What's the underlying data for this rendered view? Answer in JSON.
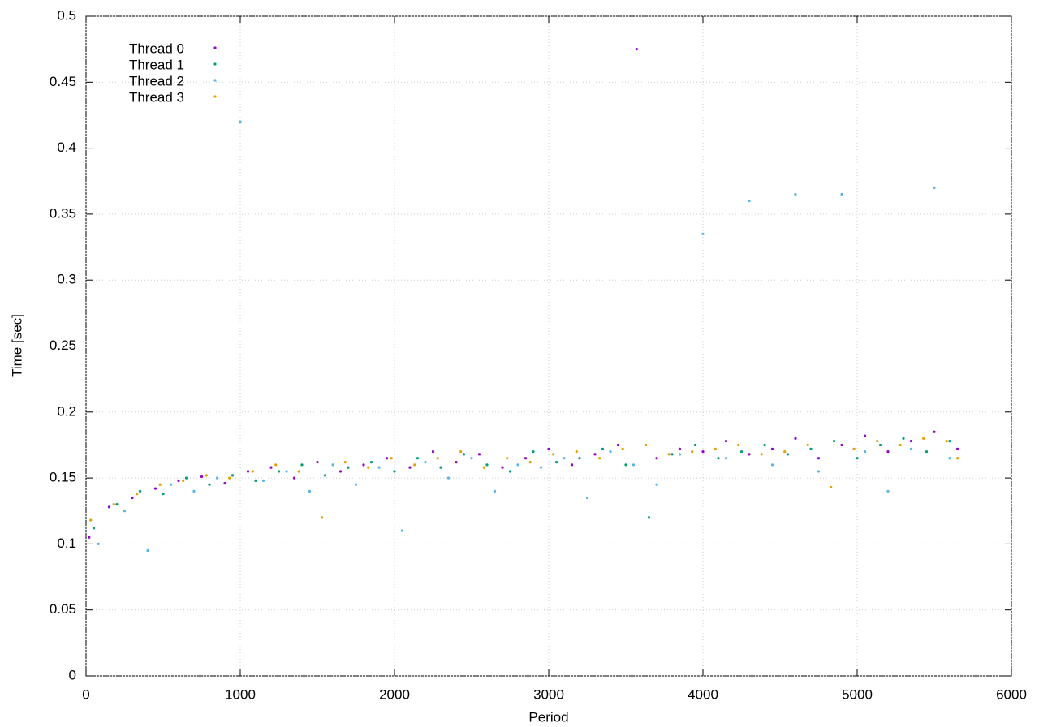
{
  "chart_data": {
    "type": "scatter",
    "x_label": "Period",
    "y_label": "Time [sec]",
    "xlim": [
      0,
      6000
    ],
    "xticks": [
      0,
      1000,
      2000,
      3000,
      4000,
      5000,
      6000
    ],
    "ylim": [
      0,
      0.5
    ],
    "yticks": [
      0,
      0.05,
      0.1,
      0.15,
      0.2,
      0.25,
      0.3,
      0.35,
      0.4,
      0.45,
      0.5
    ],
    "grid": true,
    "legend": "top-left",
    "series": [
      {
        "name": "Thread 0",
        "color": "#9400d3",
        "x": [
          20,
          150,
          300,
          450,
          600,
          750,
          900,
          1050,
          1200,
          1350,
          1500,
          1650,
          1800,
          1950,
          2100,
          2250,
          2400,
          2550,
          2700,
          2850,
          3000,
          3150,
          3300,
          3450,
          3570,
          3700,
          3850,
          4000,
          4150,
          4300,
          4450,
          4600,
          4750,
          4900,
          5050,
          5200,
          5350,
          5500,
          5650
        ],
        "values": [
          0.105,
          0.128,
          0.135,
          0.142,
          0.148,
          0.151,
          0.146,
          0.155,
          0.158,
          0.15,
          0.162,
          0.155,
          0.16,
          0.165,
          0.158,
          0.17,
          0.162,
          0.168,
          0.158,
          0.165,
          0.172,
          0.16,
          0.168,
          0.175,
          0.475,
          0.165,
          0.172,
          0.17,
          0.178,
          0.168,
          0.172,
          0.18,
          0.165,
          0.175,
          0.182,
          0.17,
          0.178,
          0.185,
          0.172
        ]
      },
      {
        "name": "Thread 1",
        "color": "#009e73",
        "x": [
          50,
          200,
          350,
          500,
          650,
          800,
          950,
          1100,
          1250,
          1400,
          1550,
          1700,
          1850,
          2000,
          2150,
          2300,
          2450,
          2600,
          2750,
          2900,
          3050,
          3200,
          3350,
          3500,
          3650,
          3800,
          3950,
          4100,
          4250,
          4400,
          4550,
          4700,
          4850,
          5000,
          5150,
          5300,
          5450,
          5600
        ],
        "values": [
          0.112,
          0.13,
          0.14,
          0.138,
          0.15,
          0.145,
          0.152,
          0.148,
          0.155,
          0.16,
          0.152,
          0.158,
          0.162,
          0.155,
          0.165,
          0.158,
          0.168,
          0.16,
          0.155,
          0.17,
          0.162,
          0.165,
          0.172,
          0.16,
          0.12,
          0.168,
          0.175,
          0.165,
          0.17,
          0.175,
          0.168,
          0.172,
          0.178,
          0.165,
          0.175,
          0.18,
          0.17,
          0.178
        ]
      },
      {
        "name": "Thread 2",
        "color": "#56b4e9",
        "x": [
          80,
          250,
          400,
          550,
          700,
          850,
          1000,
          1150,
          1300,
          1450,
          1600,
          1750,
          1900,
          2050,
          2200,
          2350,
          2500,
          2650,
          2800,
          2950,
          3100,
          3250,
          3400,
          3550,
          3700,
          3850,
          4000,
          4150,
          4300,
          4450,
          4600,
          4750,
          4900,
          5050,
          5200,
          5350,
          5500,
          5600
        ],
        "values": [
          0.1,
          0.125,
          0.095,
          0.145,
          0.14,
          0.15,
          0.42,
          0.148,
          0.155,
          0.14,
          0.16,
          0.145,
          0.158,
          0.11,
          0.162,
          0.15,
          0.165,
          0.14,
          0.16,
          0.158,
          0.165,
          0.135,
          0.17,
          0.16,
          0.145,
          0.168,
          0.335,
          0.165,
          0.36,
          0.16,
          0.365,
          0.155,
          0.365,
          0.17,
          0.14,
          0.172,
          0.37,
          0.165
        ]
      },
      {
        "name": "Thread 3",
        "color": "#e69f00",
        "x": [
          30,
          180,
          330,
          480,
          630,
          780,
          930,
          1080,
          1230,
          1380,
          1530,
          1680,
          1830,
          1980,
          2130,
          2280,
          2430,
          2580,
          2730,
          2880,
          3030,
          3180,
          3330,
          3480,
          3630,
          3780,
          3930,
          4080,
          4230,
          4380,
          4530,
          4680,
          4830,
          4980,
          5130,
          5280,
          5430,
          5580,
          5650
        ],
        "values": [
          0.118,
          0.13,
          0.138,
          0.145,
          0.148,
          0.152,
          0.15,
          0.155,
          0.16,
          0.155,
          0.12,
          0.162,
          0.158,
          0.165,
          0.16,
          0.165,
          0.17,
          0.158,
          0.165,
          0.162,
          0.168,
          0.17,
          0.165,
          0.172,
          0.175,
          0.168,
          0.17,
          0.172,
          0.175,
          0.168,
          0.17,
          0.175,
          0.143,
          0.172,
          0.178,
          0.175,
          0.18,
          0.178,
          0.165
        ]
      }
    ]
  }
}
